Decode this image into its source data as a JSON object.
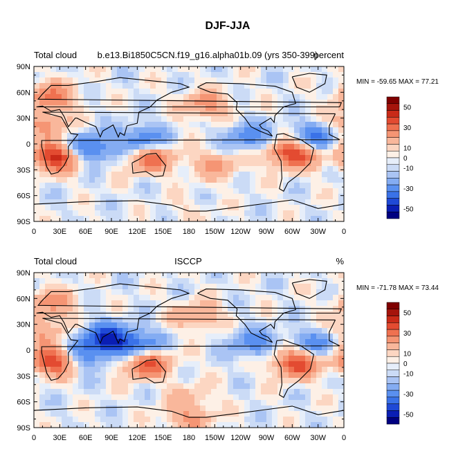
{
  "page_title": "DJF-JJA",
  "colors": {
    "palette": [
      "#000080",
      "#0a1eb4",
      "#1f49d6",
      "#3a72e8",
      "#5a90f0",
      "#84acf2",
      "#aac4f4",
      "#cbdbf6",
      "#e6eefa",
      "#fdf0e6",
      "#fcd6c2",
      "#f9b79b",
      "#f59574",
      "#ef7150",
      "#e34b31",
      "#c92a18",
      "#a5140c",
      "#7f0000"
    ],
    "coast": "#000000"
  },
  "chart_data": [
    {
      "type": "heatmap",
      "panel": "top",
      "title_left": "Total cloud",
      "title_center": "b.e13.Bi1850C5CN.f19_g16.alpha01b.09 (yrs 350-399)",
      "title_right": "percent",
      "stats": "MIN = -59.65 MAX =  77.21",
      "min": -59.65,
      "max": 77.21,
      "xlabel": "",
      "ylabel": "",
      "xlim": [
        0,
        360
      ],
      "ylim": [
        -90,
        90
      ],
      "x_ticks": [
        "0",
        "30E",
        "60E",
        "90E",
        "120E",
        "150E",
        "180",
        "150W",
        "120W",
        "90W",
        "60W",
        "30W",
        "0"
      ],
      "y_ticks": [
        "90N",
        "60N",
        "30N",
        "0",
        "30S",
        "60S",
        "90S"
      ],
      "colorbar_labels": [
        "50",
        "30",
        "10",
        "0",
        "-10",
        "-30",
        "-50"
      ],
      "colorbar_range": [
        -60,
        60
      ],
      "field_features": [
        {
          "region": "southern Africa",
          "lon": 25,
          "lat": -15,
          "value": 55
        },
        {
          "region": "South America",
          "lon": 300,
          "lat": -12,
          "value": 50
        },
        {
          "region": "northern Australia",
          "lon": 135,
          "lat": -17,
          "value": 35
        },
        {
          "region": "Sahara",
          "lon": 10,
          "lat": 22,
          "value": 25
        },
        {
          "region": "Europe",
          "lon": 20,
          "lat": 55,
          "value": 30
        },
        {
          "region": "north Pacific",
          "lon": 200,
          "lat": 45,
          "value": 25
        },
        {
          "region": "western Indian Ocean",
          "lon": 65,
          "lat": -5,
          "value": -35
        },
        {
          "region": "maritime continent",
          "lon": 125,
          "lat": 5,
          "value": -30
        },
        {
          "region": "tropical Atlantic",
          "lon": 330,
          "lat": 8,
          "value": -30
        },
        {
          "region": "eastern tropical Pacific",
          "lon": 250,
          "lat": 8,
          "value": -25
        },
        {
          "region": "south Pacific",
          "lon": 210,
          "lat": -25,
          "value": 20
        },
        {
          "region": "Antarctica",
          "lon": 180,
          "lat": -80,
          "value": 5
        }
      ]
    },
    {
      "type": "heatmap",
      "panel": "bottom",
      "title_left": "Total cloud",
      "title_center": "ISCCP",
      "title_right": "%",
      "stats": "MIN = -71.78 MAX =  73.44",
      "min": -71.78,
      "max": 73.44,
      "xlabel": "",
      "ylabel": "",
      "xlim": [
        0,
        360
      ],
      "ylim": [
        -90,
        90
      ],
      "x_ticks": [
        "0",
        "30E",
        "60E",
        "90E",
        "120E",
        "150E",
        "180",
        "150W",
        "120W",
        "90W",
        "60W",
        "30W",
        "0"
      ],
      "y_ticks": [
        "90N",
        "60N",
        "30N",
        "0",
        "30S",
        "60S",
        "90S"
      ],
      "colorbar_labels": [
        "50",
        "30",
        "10",
        "0",
        "-10",
        "-30",
        "-50"
      ],
      "colorbar_range": [
        -60,
        60
      ],
      "field_features": [
        {
          "region": "southern Africa",
          "lon": 22,
          "lat": -12,
          "value": 50
        },
        {
          "region": "South America",
          "lon": 305,
          "lat": -15,
          "value": 45
        },
        {
          "region": "northern Australia",
          "lon": 130,
          "lat": -15,
          "value": 45
        },
        {
          "region": "Sahara",
          "lon": 10,
          "lat": 22,
          "value": 20
        },
        {
          "region": "Europe",
          "lon": 20,
          "lat": 55,
          "value": 25
        },
        {
          "region": "north Pacific",
          "lon": 190,
          "lat": 40,
          "value": 20
        },
        {
          "region": "India and Bay of Bengal",
          "lon": 85,
          "lat": 15,
          "value": -45
        },
        {
          "region": "western Indian Ocean",
          "lon": 60,
          "lat": -5,
          "value": -30
        },
        {
          "region": "maritime continent",
          "lon": 120,
          "lat": 5,
          "value": -35
        },
        {
          "region": "tropical Atlantic",
          "lon": 330,
          "lat": 8,
          "value": -25
        },
        {
          "region": "eastern tropical Pacific",
          "lon": 255,
          "lat": 8,
          "value": -25
        },
        {
          "region": "southern ocean",
          "lon": 180,
          "lat": -55,
          "value": 12
        },
        {
          "region": "Antarctica",
          "lon": 180,
          "lat": -80,
          "value": 20
        }
      ]
    }
  ]
}
